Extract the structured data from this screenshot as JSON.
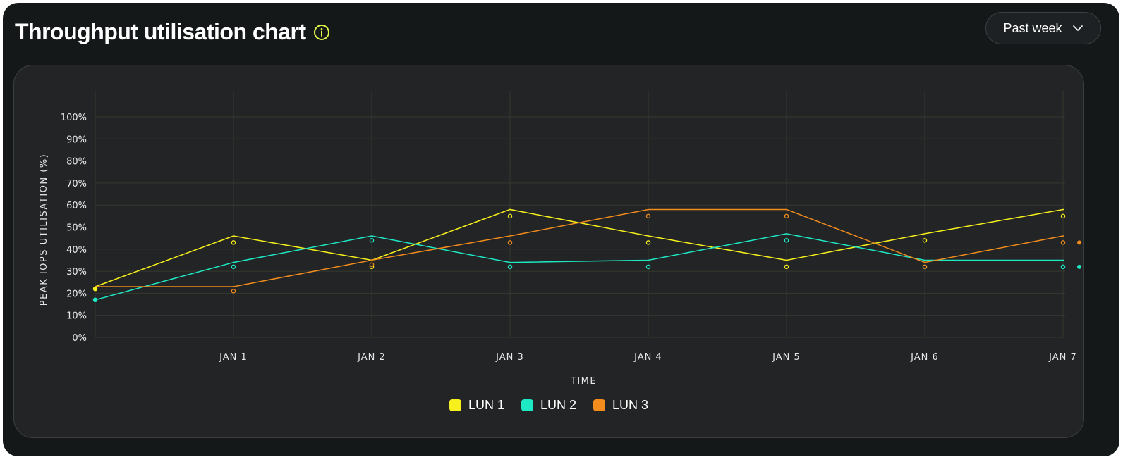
{
  "header": {
    "title": "Throughput utilisation chart",
    "info_icon": "info-icon",
    "range_label": "Past week",
    "range_icon": "chevron-down-icon",
    "accent_color": "#e4f54a"
  },
  "chart_data": {
    "type": "line",
    "title": "Throughput utilisation chart",
    "xlabel": "TIME",
    "ylabel": "PEAK IOPS UTILISATION (%)",
    "ylim": [
      0,
      100
    ],
    "yticks": [
      "0%",
      "10%",
      "20%",
      "30%",
      "40%",
      "50%",
      "60%",
      "70%",
      "80%",
      "90%",
      "100%"
    ],
    "x": [
      "",
      "JAN 1",
      "JAN 2",
      "JAN 3",
      "JAN 4",
      "JAN 5",
      "JAN 6",
      "JAN 7"
    ],
    "categories": [
      "JAN 1",
      "JAN 2",
      "JAN 3",
      "JAN 4",
      "JAN 5",
      "JAN 6",
      "JAN 7"
    ],
    "grid": true,
    "legend_position": "bottom",
    "series": [
      {
        "name": "LUN 1",
        "color": "#f7f01c",
        "values": [
          23,
          46,
          35,
          58,
          46,
          35,
          47,
          58
        ],
        "markers": [
          22,
          43,
          32,
          55,
          43,
          32,
          44,
          55
        ]
      },
      {
        "name": "LUN 2",
        "color": "#1de9c4",
        "values": [
          17,
          34,
          46,
          34,
          35,
          47,
          35,
          35
        ],
        "markers": [
          17,
          32,
          44,
          32,
          32,
          44,
          32,
          32
        ]
      },
      {
        "name": "LUN 3",
        "color": "#f28c1c",
        "values": [
          23,
          23,
          35,
          46,
          58,
          58,
          34,
          46
        ],
        "markers": [
          null,
          21,
          33,
          43,
          55,
          55,
          32,
          43
        ]
      }
    ]
  }
}
